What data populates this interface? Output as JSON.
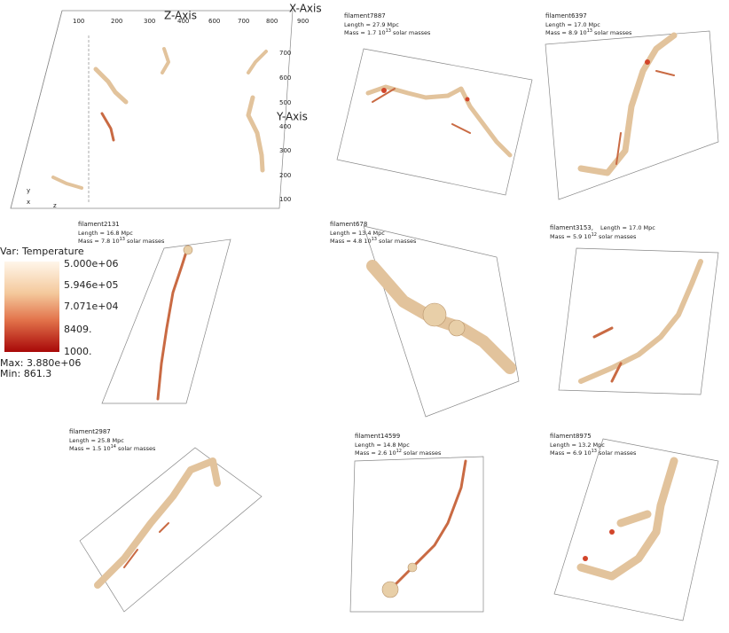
{
  "overview": {
    "z_axis": "Z-Axis",
    "y_axis": "Y-Axis",
    "x_axis": "X-Axis",
    "top_ticks": [
      "100",
      "200",
      "300",
      "400",
      "600",
      "700",
      "800",
      "900"
    ],
    "right_ticks": [
      "700",
      "600",
      "500",
      "400",
      "300",
      "200",
      "100"
    ]
  },
  "colorbar": {
    "title": "Var: Temperature",
    "labels": [
      "5.000e+06",
      "5.946e+05",
      "7.071e+04",
      "8409.",
      "1000."
    ],
    "max": "Max:  3.880e+06",
    "min": "Min:  861.3"
  },
  "panels": [
    {
      "name": "filament7887",
      "length": "Length = 27.9 Mpc",
      "mass": "Mass = 1.7 10",
      "exp": "13",
      "unit": "solar masses"
    },
    {
      "name": "filament6397",
      "length": "Length = 17.0 Mpc",
      "mass": "Mass = 8.9 10",
      "exp": "13",
      "unit": "solar masses"
    },
    {
      "name": "filament2131",
      "length": "Length = 16.8 Mpc",
      "mass": "Mass = 7.8 10",
      "exp": "13",
      "unit": "solar masses"
    },
    {
      "name": "filament678",
      "length": "Length = 13.4 Mpc",
      "mass": "Mass = 4.8 10",
      "exp": "13",
      "unit": "solar masses"
    },
    {
      "name": "filament3153,",
      "length": "Length = 17.0 Mpc",
      "mass": "Mass = 5.9 10",
      "exp": "12",
      "unit": "solar masses"
    },
    {
      "name": "filament2987",
      "length": "Length = 25.8 Mpc",
      "mass": "Mass = 1.5 10",
      "exp": "14",
      "unit": "solar masses"
    },
    {
      "name": "filament14599",
      "length": "Length = 14.8 Mpc",
      "mass": "Mass = 2.6 10",
      "exp": "12",
      "unit": "solar masses"
    },
    {
      "name": "filament8975",
      "length": "Length = 13.2 Mpc",
      "mass": "Mass = 6.9 10",
      "exp": "13",
      "unit": "solar masses"
    }
  ]
}
